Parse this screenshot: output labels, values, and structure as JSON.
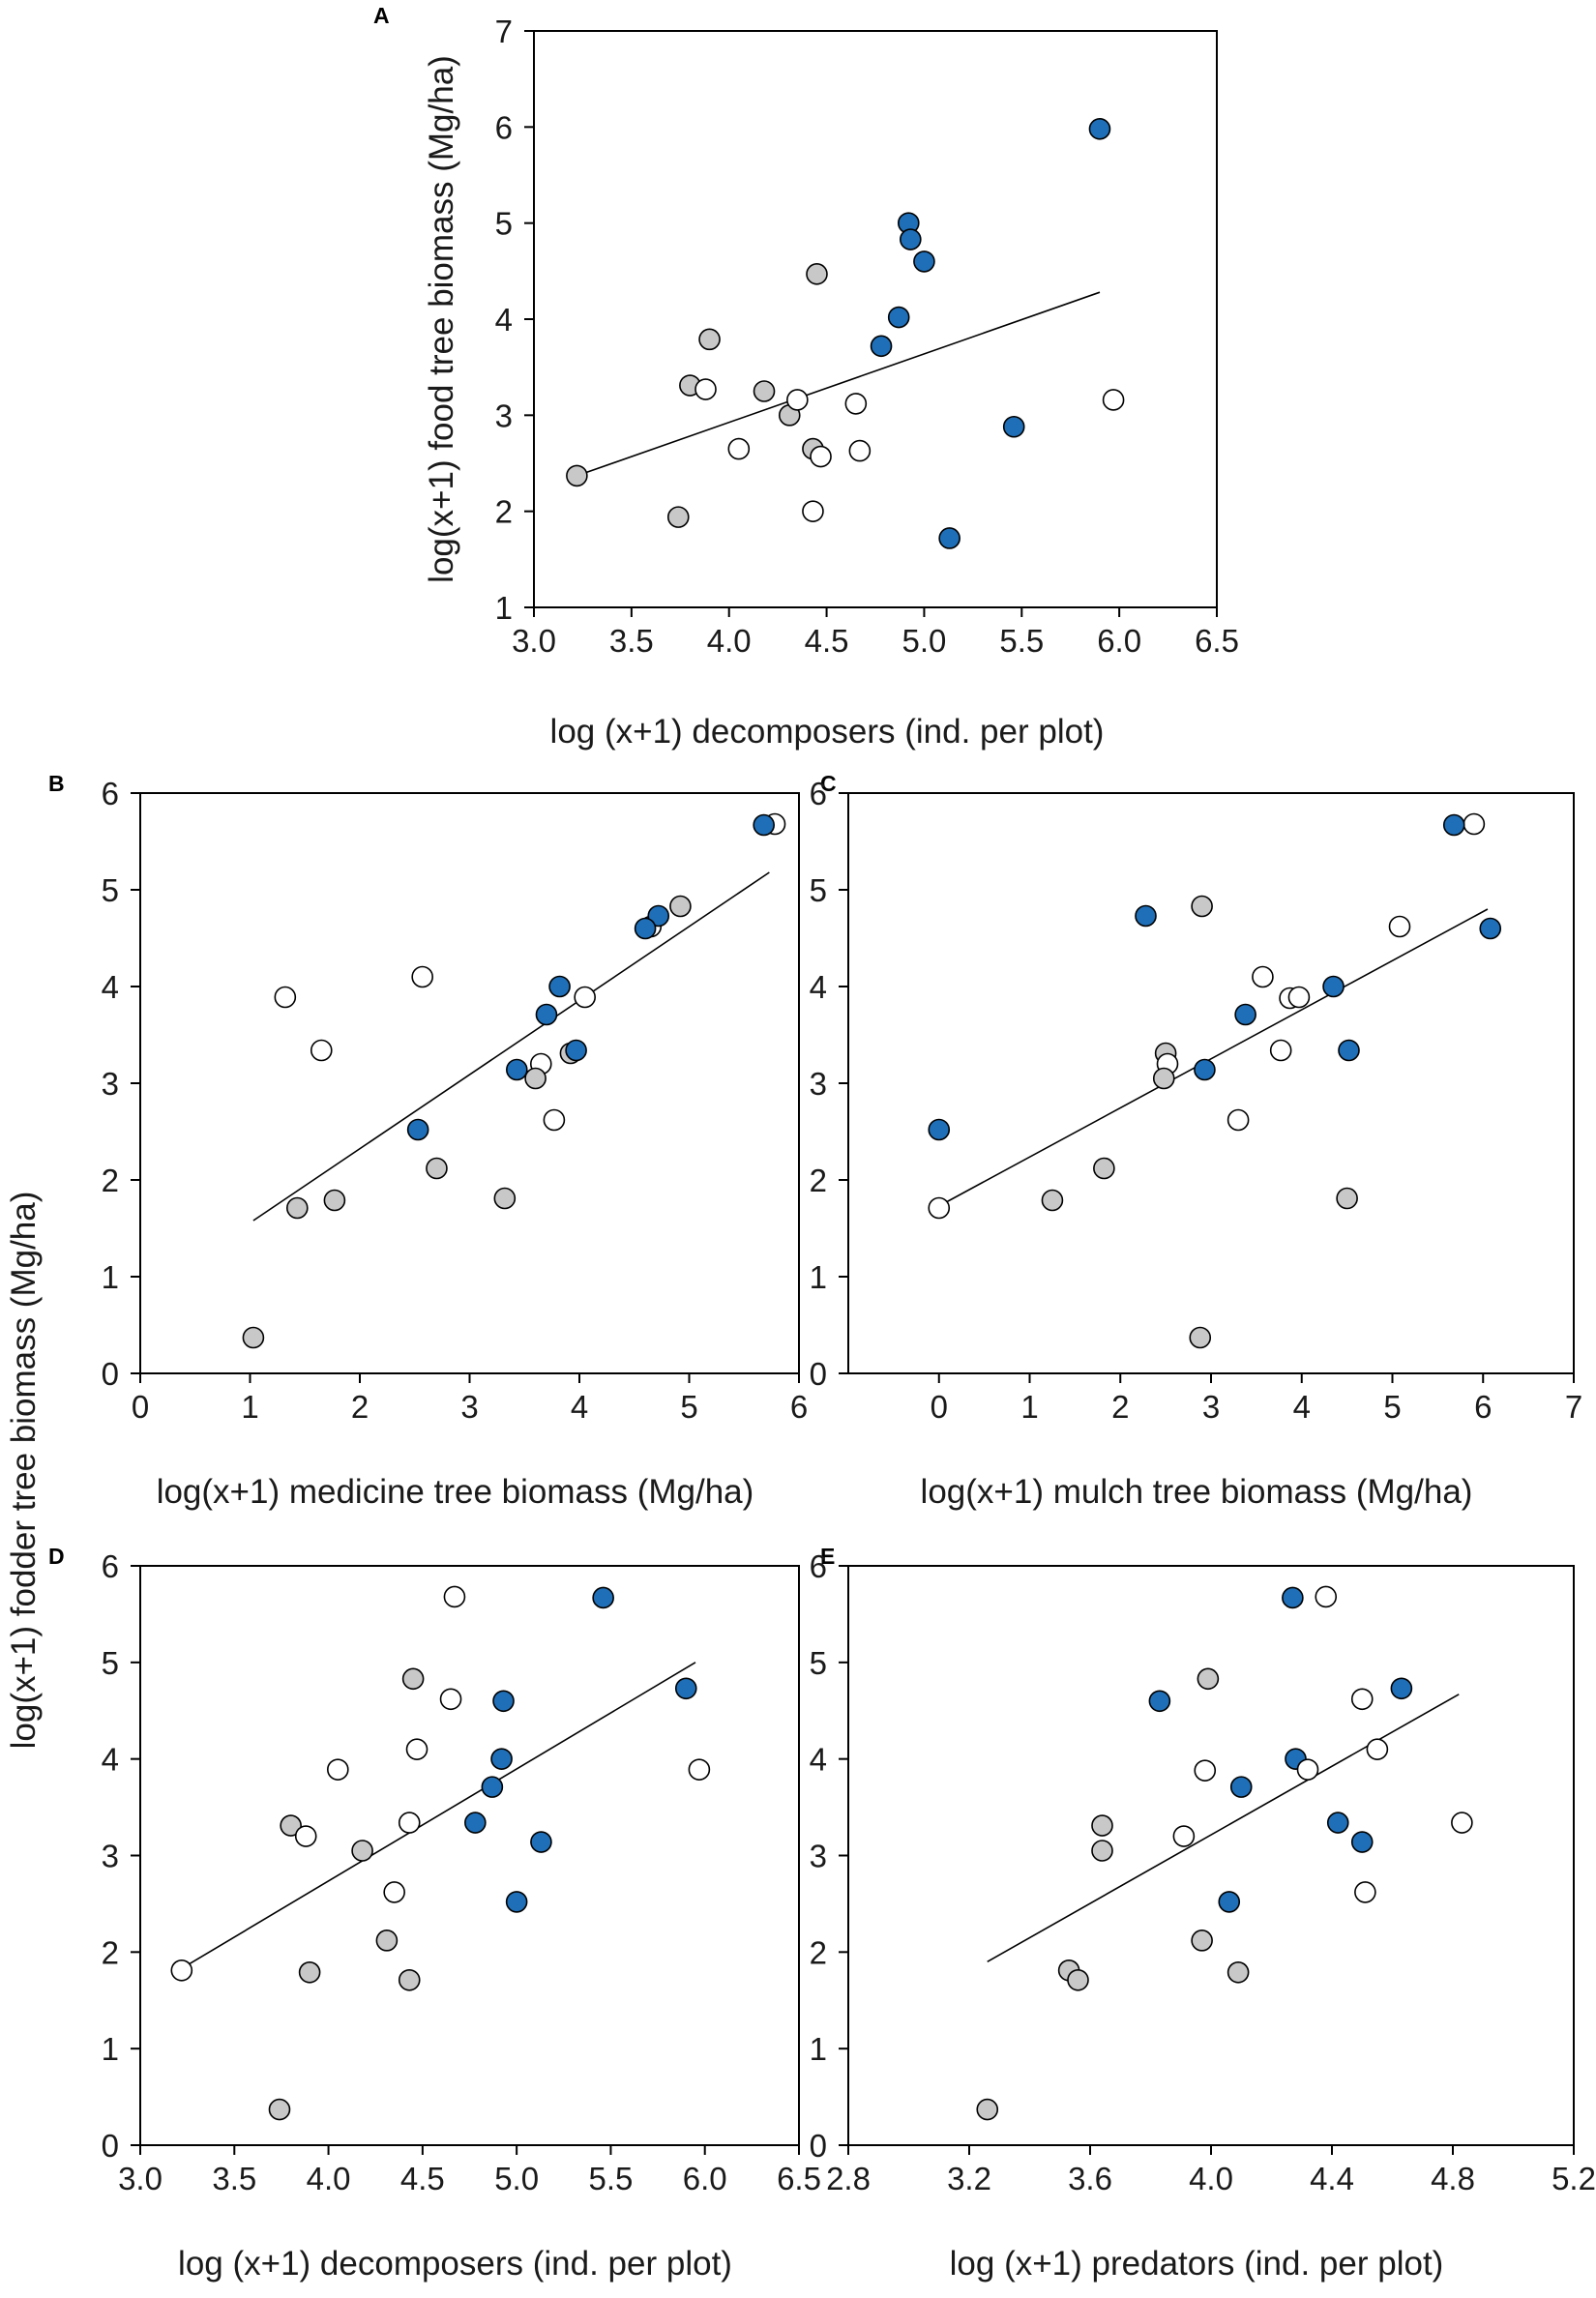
{
  "colors": {
    "farm_a": "#1f6fb8",
    "farm_b": "#c8c8c8",
    "farm_c": "#ffffff",
    "line": "#000000"
  },
  "shared_ylabel": "log(x+1) fodder tree biomass (Mg/ha)",
  "chart_data": [
    {
      "panel": "A",
      "type": "scatter",
      "xlabel": "log (x+1) decomposers (ind. per plot)",
      "ylabel": "log(x+1) food tree biomass (Mg/ha)",
      "xlim": [
        3.0,
        6.5
      ],
      "ylim": [
        1,
        7
      ],
      "xticks": [
        3.0,
        3.5,
        4.0,
        4.5,
        5.0,
        5.5,
        6.0,
        6.5
      ],
      "xtick_labels": [
        "3.0",
        "3.5",
        "4.0",
        "4.5",
        "5.0",
        "5.5",
        "6.0",
        "6.5"
      ],
      "yticks": [
        1,
        2,
        3,
        4,
        5,
        6,
        7
      ],
      "ytick_labels": [
        "1",
        "2",
        "3",
        "4",
        "5",
        "6",
        "7"
      ],
      "fit_line": [
        [
          3.22,
          2.37
        ],
        [
          5.9,
          4.28
        ]
      ],
      "points": [
        {
          "x": 5.9,
          "y": 5.98,
          "g": "farm_a"
        },
        {
          "x": 4.92,
          "y": 5.0,
          "g": "farm_a"
        },
        {
          "x": 4.93,
          "y": 4.83,
          "g": "farm_a"
        },
        {
          "x": 5.0,
          "y": 4.6,
          "g": "farm_a"
        },
        {
          "x": 4.87,
          "y": 4.02,
          "g": "farm_a"
        },
        {
          "x": 4.78,
          "y": 3.72,
          "g": "farm_a"
        },
        {
          "x": 5.46,
          "y": 2.88,
          "g": "farm_a"
        },
        {
          "x": 5.13,
          "y": 1.72,
          "g": "farm_a"
        },
        {
          "x": 3.22,
          "y": 2.37,
          "g": "farm_b"
        },
        {
          "x": 3.74,
          "y": 1.94,
          "g": "farm_b"
        },
        {
          "x": 3.8,
          "y": 3.31,
          "g": "farm_b"
        },
        {
          "x": 3.9,
          "y": 3.79,
          "g": "farm_b"
        },
        {
          "x": 4.18,
          "y": 3.25,
          "g": "farm_b"
        },
        {
          "x": 4.31,
          "y": 3.0,
          "g": "farm_b"
        },
        {
          "x": 4.43,
          "y": 2.65,
          "g": "farm_b"
        },
        {
          "x": 4.45,
          "y": 4.47,
          "g": "farm_b"
        },
        {
          "x": 3.88,
          "y": 3.27,
          "g": "farm_c"
        },
        {
          "x": 4.05,
          "y": 2.65,
          "g": "farm_c"
        },
        {
          "x": 4.35,
          "y": 3.16,
          "g": "farm_c"
        },
        {
          "x": 4.43,
          "y": 2.0,
          "g": "farm_c"
        },
        {
          "x": 4.47,
          "y": 2.57,
          "g": "farm_c"
        },
        {
          "x": 4.65,
          "y": 3.12,
          "g": "farm_c"
        },
        {
          "x": 4.67,
          "y": 2.63,
          "g": "farm_c"
        },
        {
          "x": 5.97,
          "y": 3.16,
          "g": "farm_c"
        }
      ]
    },
    {
      "panel": "B",
      "type": "scatter",
      "xlabel": "log(x+1) medicine tree biomass (Mg/ha)",
      "ylabel": "log(x+1) fodder tree biomass (Mg/ha)",
      "xlim": [
        0,
        6
      ],
      "ylim": [
        0,
        6
      ],
      "xticks": [
        0,
        1,
        2,
        3,
        4,
        5,
        6
      ],
      "xtick_labels": [
        "0",
        "1",
        "2",
        "3",
        "4",
        "5",
        "6"
      ],
      "yticks": [
        0,
        1,
        2,
        3,
        4,
        5,
        6
      ],
      "ytick_labels": [
        "0",
        "1",
        "2",
        "3",
        "4",
        "5",
        "6"
      ],
      "fit_line": [
        [
          1.03,
          1.58
        ],
        [
          5.73,
          5.18
        ]
      ],
      "points": [
        {
          "x": 5.78,
          "y": 5.68,
          "g": "farm_c"
        },
        {
          "x": 5.68,
          "y": 5.67,
          "g": "farm_a"
        },
        {
          "x": 4.92,
          "y": 4.83,
          "g": "farm_b"
        },
        {
          "x": 4.65,
          "y": 4.62,
          "g": "farm_c"
        },
        {
          "x": 4.72,
          "y": 4.73,
          "g": "farm_a"
        },
        {
          "x": 4.6,
          "y": 4.6,
          "g": "farm_a"
        },
        {
          "x": 2.57,
          "y": 4.1,
          "g": "farm_c"
        },
        {
          "x": 1.32,
          "y": 3.89,
          "g": "farm_c"
        },
        {
          "x": 4.05,
          "y": 3.89,
          "g": "farm_c"
        },
        {
          "x": 3.82,
          "y": 4.0,
          "g": "farm_a"
        },
        {
          "x": 3.7,
          "y": 3.71,
          "g": "farm_a"
        },
        {
          "x": 1.65,
          "y": 3.34,
          "g": "farm_c"
        },
        {
          "x": 3.92,
          "y": 3.31,
          "g": "farm_b"
        },
        {
          "x": 3.97,
          "y": 3.34,
          "g": "farm_a"
        },
        {
          "x": 3.43,
          "y": 3.14,
          "g": "farm_a"
        },
        {
          "x": 3.65,
          "y": 3.2,
          "g": "farm_c"
        },
        {
          "x": 3.6,
          "y": 3.05,
          "g": "farm_b"
        },
        {
          "x": 3.77,
          "y": 2.62,
          "g": "farm_c"
        },
        {
          "x": 2.53,
          "y": 2.52,
          "g": "farm_a"
        },
        {
          "x": 2.7,
          "y": 2.12,
          "g": "farm_b"
        },
        {
          "x": 3.32,
          "y": 1.81,
          "g": "farm_b"
        },
        {
          "x": 1.77,
          "y": 1.79,
          "g": "farm_b"
        },
        {
          "x": 1.43,
          "y": 1.71,
          "g": "farm_b"
        },
        {
          "x": 1.03,
          "y": 0.37,
          "g": "farm_b"
        }
      ]
    },
    {
      "panel": "C",
      "type": "scatter",
      "xlabel": "log(x+1) mulch tree biomass (Mg/ha)",
      "ylabel": "",
      "xlim": [
        -1,
        7
      ],
      "ylim": [
        0,
        6
      ],
      "xticks": [
        0,
        1,
        2,
        3,
        4,
        5,
        6,
        7
      ],
      "xtick_labels": [
        "0",
        "1",
        "2",
        "3",
        "4",
        "5",
        "6",
        "7"
      ],
      "yticks": [
        0,
        1,
        2,
        3,
        4,
        5,
        6
      ],
      "ytick_labels": [
        "0",
        "1",
        "2",
        "3",
        "4",
        "5",
        "6"
      ],
      "fit_line": [
        [
          0.0,
          1.73
        ],
        [
          6.05,
          4.8
        ]
      ],
      "points": [
        {
          "x": 5.9,
          "y": 5.68,
          "g": "farm_c"
        },
        {
          "x": 5.68,
          "y": 5.67,
          "g": "farm_a"
        },
        {
          "x": 2.28,
          "y": 4.73,
          "g": "farm_a"
        },
        {
          "x": 2.9,
          "y": 4.83,
          "g": "farm_b"
        },
        {
          "x": 5.08,
          "y": 4.62,
          "g": "farm_c"
        },
        {
          "x": 6.08,
          "y": 4.6,
          "g": "farm_a"
        },
        {
          "x": 3.57,
          "y": 4.1,
          "g": "farm_c"
        },
        {
          "x": 3.87,
          "y": 3.88,
          "g": "farm_c"
        },
        {
          "x": 3.97,
          "y": 3.89,
          "g": "farm_c"
        },
        {
          "x": 4.35,
          "y": 4.0,
          "g": "farm_a"
        },
        {
          "x": 3.38,
          "y": 3.71,
          "g": "farm_a"
        },
        {
          "x": 3.77,
          "y": 3.34,
          "g": "farm_c"
        },
        {
          "x": 4.52,
          "y": 3.34,
          "g": "farm_a"
        },
        {
          "x": 2.5,
          "y": 3.31,
          "g": "farm_b"
        },
        {
          "x": 2.52,
          "y": 3.2,
          "g": "farm_c"
        },
        {
          "x": 2.93,
          "y": 3.14,
          "g": "farm_a"
        },
        {
          "x": 2.48,
          "y": 3.05,
          "g": "farm_b"
        },
        {
          "x": 3.3,
          "y": 2.62,
          "g": "farm_c"
        },
        {
          "x": 0.0,
          "y": 2.52,
          "g": "farm_a"
        },
        {
          "x": 1.82,
          "y": 2.12,
          "g": "farm_b"
        },
        {
          "x": 4.5,
          "y": 1.81,
          "g": "farm_b"
        },
        {
          "x": 1.25,
          "y": 1.79,
          "g": "farm_b"
        },
        {
          "x": 0.0,
          "y": 1.71,
          "g": "farm_c"
        },
        {
          "x": 2.88,
          "y": 0.37,
          "g": "farm_b"
        }
      ]
    },
    {
      "panel": "D",
      "type": "scatter",
      "xlabel": "log (x+1) decomposers (ind. per plot)",
      "ylabel": "log(x+1) fodder tree biomass (Mg/ha)",
      "xlim": [
        3.0,
        6.5
      ],
      "ylim": [
        0,
        6
      ],
      "xticks": [
        3.0,
        3.5,
        4.0,
        4.5,
        5.0,
        5.5,
        6.0,
        6.5
      ],
      "xtick_labels": [
        "3.0",
        "3.5",
        "4.0",
        "4.5",
        "5.0",
        "5.5",
        "6.0",
        "6.5"
      ],
      "yticks": [
        0,
        1,
        2,
        3,
        4,
        5,
        6
      ],
      "ytick_labels": [
        "0",
        "1",
        "2",
        "3",
        "4",
        "5",
        "6"
      ],
      "fit_line": [
        [
          3.22,
          1.83
        ],
        [
          5.95,
          5.0
        ]
      ],
      "points": [
        {
          "x": 4.67,
          "y": 5.68,
          "g": "farm_c"
        },
        {
          "x": 5.46,
          "y": 5.67,
          "g": "farm_a"
        },
        {
          "x": 4.45,
          "y": 4.83,
          "g": "farm_b"
        },
        {
          "x": 4.65,
          "y": 4.62,
          "g": "farm_c"
        },
        {
          "x": 5.9,
          "y": 4.73,
          "g": "farm_a"
        },
        {
          "x": 4.93,
          "y": 4.6,
          "g": "farm_a"
        },
        {
          "x": 4.47,
          "y": 4.1,
          "g": "farm_c"
        },
        {
          "x": 4.05,
          "y": 3.89,
          "g": "farm_c"
        },
        {
          "x": 5.97,
          "y": 3.89,
          "g": "farm_c"
        },
        {
          "x": 4.92,
          "y": 4.0,
          "g": "farm_a"
        },
        {
          "x": 4.87,
          "y": 3.71,
          "g": "farm_a"
        },
        {
          "x": 4.43,
          "y": 3.34,
          "g": "farm_c"
        },
        {
          "x": 3.8,
          "y": 3.31,
          "g": "farm_b"
        },
        {
          "x": 4.78,
          "y": 3.34,
          "g": "farm_a"
        },
        {
          "x": 3.88,
          "y": 3.2,
          "g": "farm_c"
        },
        {
          "x": 5.13,
          "y": 3.14,
          "g": "farm_a"
        },
        {
          "x": 4.18,
          "y": 3.05,
          "g": "farm_b"
        },
        {
          "x": 4.35,
          "y": 2.62,
          "g": "farm_c"
        },
        {
          "x": 5.0,
          "y": 2.52,
          "g": "farm_a"
        },
        {
          "x": 4.31,
          "y": 2.12,
          "g": "farm_b"
        },
        {
          "x": 3.9,
          "y": 1.79,
          "g": "farm_b"
        },
        {
          "x": 3.22,
          "y": 1.81,
          "g": "farm_c"
        },
        {
          "x": 4.43,
          "y": 1.71,
          "g": "farm_b"
        },
        {
          "x": 3.74,
          "y": 0.37,
          "g": "farm_b"
        }
      ]
    },
    {
      "panel": "E",
      "type": "scatter",
      "xlabel": "log (x+1) predators (ind. per plot)",
      "ylabel": "",
      "xlim": [
        2.8,
        5.2
      ],
      "ylim": [
        0,
        6
      ],
      "xticks": [
        2.8,
        3.2,
        3.6,
        4.0,
        4.4,
        4.8,
        5.2
      ],
      "xtick_labels": [
        "2.8",
        "3.2",
        "3.6",
        "4.0",
        "4.4",
        "4.8",
        "5.2"
      ],
      "yticks": [
        0,
        1,
        2,
        3,
        4,
        5,
        6
      ],
      "ytick_labels": [
        "0",
        "1",
        "2",
        "3",
        "4",
        "5",
        "6"
      ],
      "fit_line": [
        [
          3.26,
          1.9
        ],
        [
          4.82,
          4.67
        ]
      ],
      "points": [
        {
          "x": 4.38,
          "y": 5.68,
          "g": "farm_c"
        },
        {
          "x": 4.27,
          "y": 5.67,
          "g": "farm_a"
        },
        {
          "x": 3.99,
          "y": 4.83,
          "g": "farm_b"
        },
        {
          "x": 4.63,
          "y": 4.73,
          "g": "farm_a"
        },
        {
          "x": 4.5,
          "y": 4.62,
          "g": "farm_c"
        },
        {
          "x": 3.83,
          "y": 4.6,
          "g": "farm_a"
        },
        {
          "x": 4.55,
          "y": 4.1,
          "g": "farm_c"
        },
        {
          "x": 4.28,
          "y": 4.0,
          "g": "farm_a"
        },
        {
          "x": 3.98,
          "y": 3.88,
          "g": "farm_c"
        },
        {
          "x": 4.32,
          "y": 3.89,
          "g": "farm_c"
        },
        {
          "x": 4.1,
          "y": 3.71,
          "g": "farm_a"
        },
        {
          "x": 4.42,
          "y": 3.34,
          "g": "farm_a"
        },
        {
          "x": 4.83,
          "y": 3.34,
          "g": "farm_c"
        },
        {
          "x": 3.64,
          "y": 3.31,
          "g": "farm_b"
        },
        {
          "x": 3.91,
          "y": 3.2,
          "g": "farm_c"
        },
        {
          "x": 4.5,
          "y": 3.14,
          "g": "farm_a"
        },
        {
          "x": 3.64,
          "y": 3.05,
          "g": "farm_b"
        },
        {
          "x": 4.51,
          "y": 2.62,
          "g": "farm_c"
        },
        {
          "x": 4.06,
          "y": 2.52,
          "g": "farm_a"
        },
        {
          "x": 3.97,
          "y": 2.12,
          "g": "farm_b"
        },
        {
          "x": 3.53,
          "y": 1.81,
          "g": "farm_b"
        },
        {
          "x": 4.09,
          "y": 1.79,
          "g": "farm_b"
        },
        {
          "x": 3.56,
          "y": 1.71,
          "g": "farm_b"
        },
        {
          "x": 3.26,
          "y": 0.37,
          "g": "farm_b"
        }
      ]
    }
  ]
}
